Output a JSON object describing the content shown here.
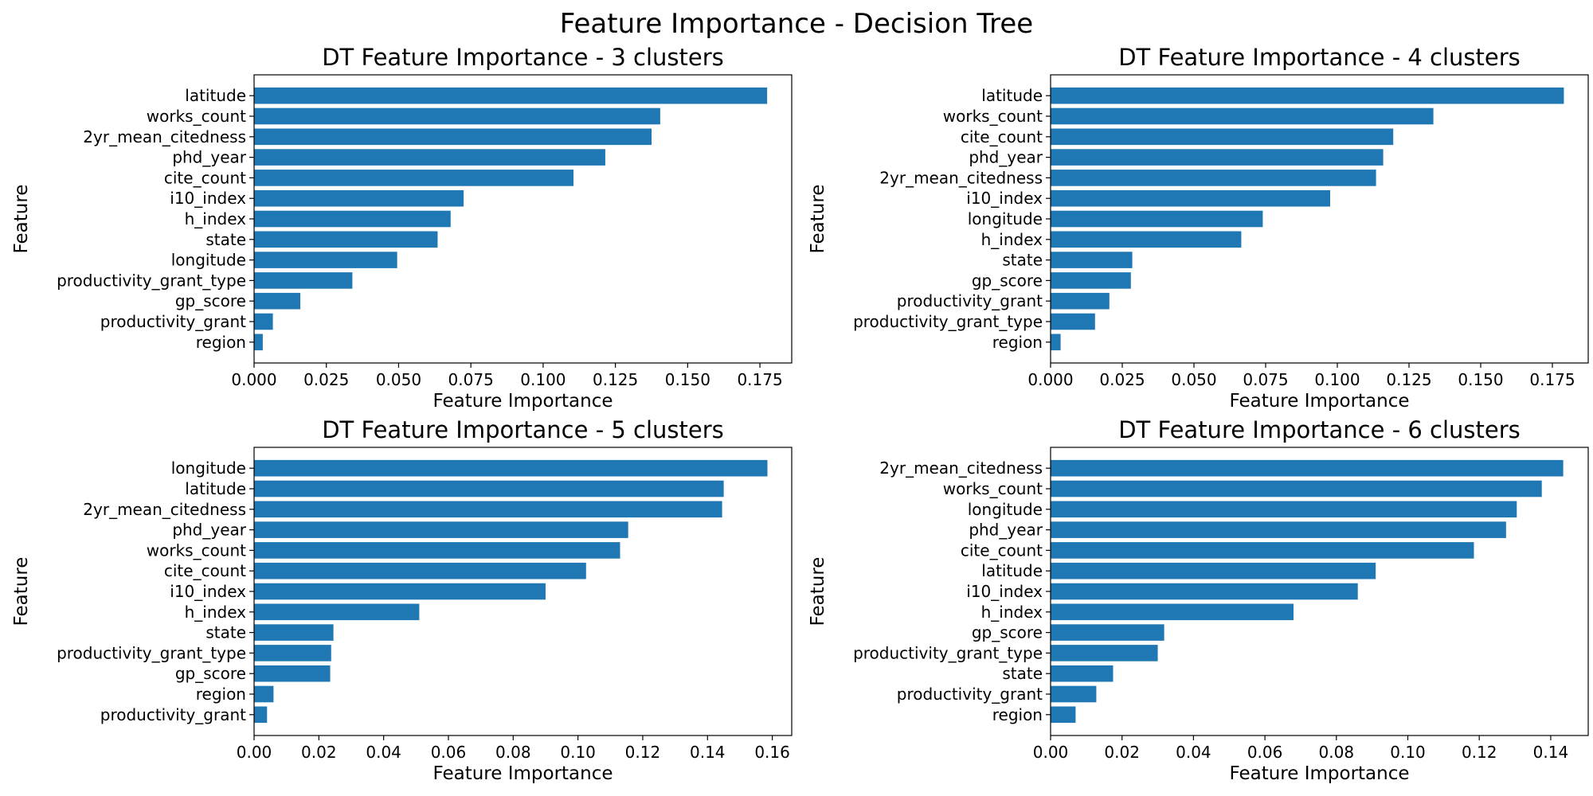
{
  "figure_title": "Feature Importance - Decision Tree",
  "colors": {
    "bar": "#1f77b4",
    "axis": "#000000"
  },
  "chart_data": [
    {
      "type": "bar",
      "orientation": "horizontal",
      "title": "DT Feature Importance - 3 clusters",
      "xlabel": "Feature Importance",
      "ylabel": "Feature",
      "xlim": [
        0,
        0.186
      ],
      "xticks": [
        "0.000",
        "0.025",
        "0.050",
        "0.075",
        "0.100",
        "0.125",
        "0.150",
        "0.175"
      ],
      "categories": [
        "region",
        "productivity_grant",
        "gp_score",
        "productivity_grant_type",
        "longitude",
        "state",
        "h_index",
        "i10_index",
        "cite_count",
        "phd_year",
        "2yr_mean_citedness",
        "works_count",
        "latitude"
      ],
      "values": [
        0.003,
        0.0065,
        0.016,
        0.034,
        0.0495,
        0.0635,
        0.068,
        0.0725,
        0.1105,
        0.1215,
        0.1375,
        0.1405,
        0.1775
      ],
      "grid": false
    },
    {
      "type": "bar",
      "orientation": "horizontal",
      "title": "DT Feature Importance - 4 clusters",
      "xlabel": "Feature Importance",
      "ylabel": "Feature",
      "xlim": [
        0,
        0.1875
      ],
      "xticks": [
        "0.000",
        "0.025",
        "0.050",
        "0.075",
        "0.100",
        "0.125",
        "0.150",
        "0.175"
      ],
      "categories": [
        "region",
        "productivity_grant_type",
        "productivity_grant",
        "gp_score",
        "state",
        "h_index",
        "longitude",
        "i10_index",
        "2yr_mean_citedness",
        "phd_year",
        "cite_count",
        "works_count",
        "latitude"
      ],
      "values": [
        0.0035,
        0.0155,
        0.0205,
        0.028,
        0.0285,
        0.0665,
        0.074,
        0.0975,
        0.1135,
        0.116,
        0.1195,
        0.1335,
        0.179
      ],
      "grid": false
    },
    {
      "type": "bar",
      "orientation": "horizontal",
      "title": "DT Feature Importance - 5 clusters",
      "xlabel": "Feature Importance",
      "ylabel": "Feature",
      "xlim": [
        0,
        0.166
      ],
      "xticks": [
        "0.00",
        "0.02",
        "0.04",
        "0.06",
        "0.08",
        "0.10",
        "0.12",
        "0.14",
        "0.16"
      ],
      "categories": [
        "productivity_grant",
        "region",
        "gp_score",
        "productivity_grant_type",
        "state",
        "h_index",
        "i10_index",
        "cite_count",
        "works_count",
        "phd_year",
        "2yr_mean_citedness",
        "latitude",
        "longitude"
      ],
      "values": [
        0.004,
        0.006,
        0.0235,
        0.0238,
        0.0245,
        0.051,
        0.09,
        0.1025,
        0.113,
        0.1155,
        0.1445,
        0.145,
        0.1585
      ],
      "grid": false
    },
    {
      "type": "bar",
      "orientation": "horizontal",
      "title": "DT Feature Importance - 6 clusters",
      "xlabel": "Feature Importance",
      "ylabel": "Feature",
      "xlim": [
        0,
        0.1505
      ],
      "xticks": [
        "0.00",
        "0.02",
        "0.04",
        "0.06",
        "0.08",
        "0.10",
        "0.12",
        "0.14"
      ],
      "categories": [
        "region",
        "productivity_grant",
        "state",
        "productivity_grant_type",
        "gp_score",
        "h_index",
        "i10_index",
        "latitude",
        "cite_count",
        "phd_year",
        "longitude",
        "works_count",
        "2yr_mean_citedness"
      ],
      "values": [
        0.007,
        0.0128,
        0.0175,
        0.03,
        0.0318,
        0.068,
        0.086,
        0.091,
        0.1185,
        0.1275,
        0.1305,
        0.1375,
        0.1435
      ],
      "grid": false
    }
  ]
}
